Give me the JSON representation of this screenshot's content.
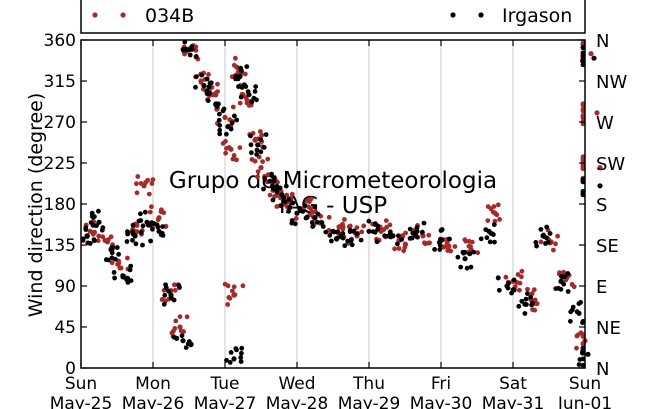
{
  "chart_data": {
    "type": "scatter",
    "title": "",
    "xlabel": "",
    "ylabel": "Wind direction (degree)",
    "ylim": [
      0,
      360
    ],
    "yticks": [
      0,
      45,
      90,
      135,
      180,
      225,
      270,
      315,
      360
    ],
    "xlim": [
      "2014-05-25",
      "2014-06-01"
    ],
    "x_tick_labels": [
      {
        "day": "Sun",
        "date": "May-25"
      },
      {
        "day": "Mon",
        "date": "May-26"
      },
      {
        "day": "Tue",
        "date": "May-27"
      },
      {
        "day": "Wed",
        "date": "May-28"
      },
      {
        "day": "Thu",
        "date": "May-29"
      },
      {
        "day": "Fri",
        "date": "May-30"
      },
      {
        "day": "Sat",
        "date": "May-31"
      },
      {
        "day": "Sun",
        "date": "Jun-01"
      }
    ],
    "right_axis_labels": [
      "N",
      "NE",
      "E",
      "SE",
      "S",
      "SW",
      "W",
      "NW",
      "N"
    ],
    "grid": "vertical",
    "legend_position": "top",
    "watermark": [
      "Grupo de Micrometeorologia",
      "IAG - USP"
    ],
    "series": [
      {
        "name": "034B",
        "color": "#a52a2a",
        "points": [
          [
            "2014-05-25 03:00",
            150
          ],
          [
            "2014-05-25 08:00",
            140
          ],
          [
            "2014-05-25 13:00",
            110
          ],
          [
            "2014-05-25 18:00",
            150
          ],
          [
            "2014-05-25 21:00",
            200
          ],
          [
            "2014-05-26 02:00",
            165
          ],
          [
            "2014-05-26 06:00",
            85
          ],
          [
            "2014-05-26 09:00",
            45
          ],
          [
            "2014-05-26 12:00",
            350
          ],
          [
            "2014-05-26 16:00",
            315
          ],
          [
            "2014-05-26 20:00",
            300
          ],
          [
            "2014-05-27 00:00",
            275
          ],
          [
            "2014-05-27 02:00",
            240
          ],
          [
            "2014-05-27 03:00",
            80
          ],
          [
            "2014-05-27 04:00",
            330
          ],
          [
            "2014-05-27 06:00",
            300
          ],
          [
            "2014-05-27 10:00",
            250
          ],
          [
            "2014-05-27 12:00",
            220
          ],
          [
            "2014-05-27 16:00",
            195
          ],
          [
            "2014-05-27 20:00",
            180
          ],
          [
            "2014-05-28 02:00",
            175
          ],
          [
            "2014-05-28 08:00",
            160
          ],
          [
            "2014-05-28 14:00",
            155
          ],
          [
            "2014-05-28 20:00",
            145
          ],
          [
            "2014-05-29 04:00",
            150
          ],
          [
            "2014-05-29 10:00",
            140
          ],
          [
            "2014-05-29 18:00",
            145
          ],
          [
            "2014-05-30 02:00",
            135
          ],
          [
            "2014-05-30 10:00",
            130
          ],
          [
            "2014-05-30 18:00",
            170
          ],
          [
            "2014-05-31 00:00",
            95
          ],
          [
            "2014-05-31 06:00",
            75
          ],
          [
            "2014-05-31 12:00",
            140
          ],
          [
            "2014-05-31 18:00",
            100
          ],
          [
            "2014-06-01 00:00",
            30
          ],
          [
            "2014-06-01 02:00",
            345
          ],
          [
            "2014-06-01 04:00",
            280
          ],
          [
            "2014-06-01 05:00",
            220
          ]
        ]
      },
      {
        "name": "Irgason",
        "color": "#000000",
        "points": [
          [
            "2014-05-25 02:00",
            145
          ],
          [
            "2014-05-25 06:00",
            160
          ],
          [
            "2014-05-25 10:00",
            130
          ],
          [
            "2014-05-25 14:00",
            100
          ],
          [
            "2014-05-25 18:00",
            145
          ],
          [
            "2014-05-25 22:00",
            160
          ],
          [
            "2014-05-26 02:00",
            150
          ],
          [
            "2014-05-26 06:00",
            80
          ],
          [
            "2014-05-26 10:00",
            30
          ],
          [
            "2014-05-26 13:00",
            350
          ],
          [
            "2014-05-26 17:00",
            310
          ],
          [
            "2014-05-26 21:00",
            290
          ],
          [
            "2014-05-27 01:00",
            265
          ],
          [
            "2014-05-27 03:00",
            10
          ],
          [
            "2014-05-27 05:00",
            320
          ],
          [
            "2014-05-27 08:00",
            300
          ],
          [
            "2014-05-27 11:00",
            245
          ],
          [
            "2014-05-27 15:00",
            205
          ],
          [
            "2014-05-27 19:00",
            190
          ],
          [
            "2014-05-28 00:00",
            170
          ],
          [
            "2014-05-28 06:00",
            165
          ],
          [
            "2014-05-28 12:00",
            150
          ],
          [
            "2014-05-28 18:00",
            140
          ],
          [
            "2014-05-29 00:00",
            150
          ],
          [
            "2014-05-29 08:00",
            145
          ],
          [
            "2014-05-29 16:00",
            150
          ],
          [
            "2014-05-30 00:00",
            140
          ],
          [
            "2014-05-30 08:00",
            120
          ],
          [
            "2014-05-30 16:00",
            150
          ],
          [
            "2014-05-30 22:00",
            90
          ],
          [
            "2014-05-31 04:00",
            70
          ],
          [
            "2014-05-31 10:00",
            145
          ],
          [
            "2014-05-31 16:00",
            95
          ],
          [
            "2014-05-31 22:00",
            60
          ],
          [
            "2014-06-01 01:00",
            15
          ],
          [
            "2014-06-01 03:00",
            340
          ],
          [
            "2014-06-01 05:00",
            200
          ]
        ]
      }
    ]
  }
}
